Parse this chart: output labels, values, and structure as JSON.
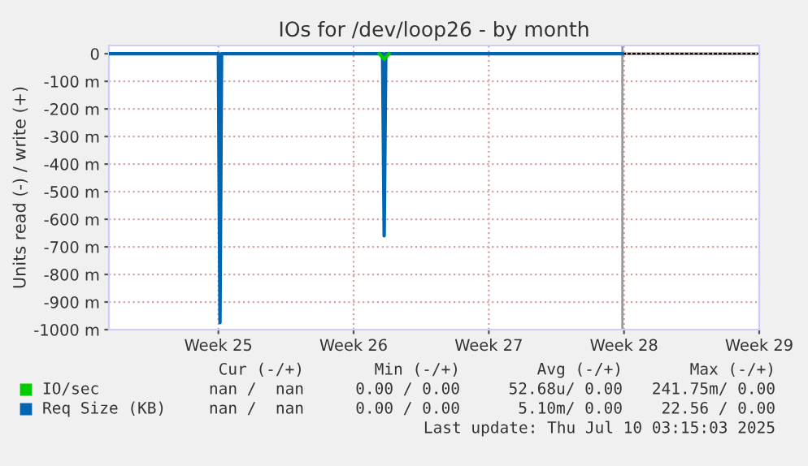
{
  "chart_data": {
    "type": "line",
    "title": "IOs for /dev/loop26 - by month",
    "ylabel": "Units read (-) / write (+)",
    "xlim": [
      "2025-06-10T08:00",
      "2025-07-14"
    ],
    "xticks": [
      {
        "value": "2025-06-16",
        "label": "Week 25"
      },
      {
        "value": "2025-06-23",
        "label": "Week 26"
      },
      {
        "value": "2025-06-30",
        "label": "Week 27"
      },
      {
        "value": "2025-07-07",
        "label": "Week 28"
      },
      {
        "value": "2025-07-14",
        "label": "Week 29"
      }
    ],
    "ylim": [
      -1000,
      30
    ],
    "yticks": [
      {
        "value": 0,
        "label": "0"
      },
      {
        "value": -100,
        "label": "-100 m"
      },
      {
        "value": -200,
        "label": "-200 m"
      },
      {
        "value": -300,
        "label": "-300 m"
      },
      {
        "value": -400,
        "label": "-400 m"
      },
      {
        "value": -500,
        "label": "-500 m"
      },
      {
        "value": -600,
        "label": "-600 m"
      },
      {
        "value": -700,
        "label": "-700 m"
      },
      {
        "value": -800,
        "label": "-800 m"
      },
      {
        "value": -900,
        "label": "-900 m"
      },
      {
        "value": -1000,
        "label": "-1000 m"
      }
    ],
    "grid": true,
    "line_style": "solid",
    "legend": "bottom left",
    "series": [
      {
        "name": "Req Size (KB)",
        "color": "#0066b3",
        "x": [
          "2025-06-10T08:00",
          "2025-06-16T00:00",
          "2025-06-16T02:00",
          "2025-06-16T04:00",
          "2025-06-24T12:00",
          "2025-06-24T14:00",
          "2025-06-24T16:00",
          "2025-07-06T22:00"
        ],
        "values": [
          0,
          0,
          -975,
          0,
          0,
          -660,
          0,
          0
        ]
      },
      {
        "name": "IO/sec",
        "color": "#00cc00",
        "x": [
          "2025-06-24T08:00",
          "2025-06-24T14:00",
          "2025-06-24T20:00"
        ],
        "values": [
          0,
          -20,
          0
        ]
      }
    ],
    "ref_lines": [
      {
        "axis": "x",
        "value": "2025-07-06T22:00",
        "color": "#999999"
      }
    ],
    "annotations": [
      "Cur (-/+)",
      "Min (-/+)",
      "Avg (-/+)",
      "Max (-/+)",
      "nan /  nan",
      "0.00 / 0.00",
      "52.68u/ 0.00",
      "241.75m/ 0.00",
      "nan /  nan",
      "0.00 / 0.00",
      "5.10m/ 0.00",
      "22.56 / 0.00",
      "Last update: Thu Jul 10 03:15:03 2025"
    ]
  }
}
